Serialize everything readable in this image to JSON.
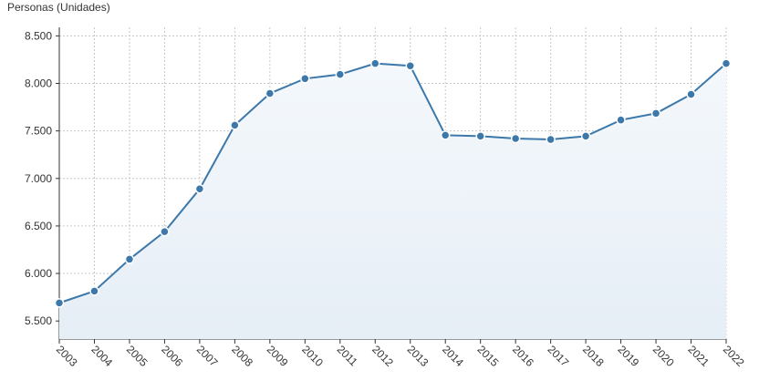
{
  "chart_data": {
    "type": "line",
    "y_axis_title": "Personas (Unidades)",
    "categories": [
      "2003",
      "2004",
      "2005",
      "2006",
      "2007",
      "2008",
      "2009",
      "2010",
      "2011",
      "2012",
      "2013",
      "2014",
      "2015",
      "2016",
      "2017",
      "2018",
      "2019",
      "2020",
      "2021",
      "2022"
    ],
    "series": [
      {
        "color": "#3d78aa",
        "values": [
          5690,
          5815,
          6150,
          6440,
          6890,
          7560,
          7895,
          8050,
          8095,
          8210,
          8185,
          7455,
          7445,
          7420,
          7410,
          7445,
          7615,
          7685,
          7885,
          8210
        ]
      }
    ],
    "ylim": [
      5310,
      8590
    ],
    "yticks": [
      {
        "value": 5500,
        "label": "5.500"
      },
      {
        "value": 6000,
        "label": "6.000"
      },
      {
        "value": 6500,
        "label": "6.500"
      },
      {
        "value": 7000,
        "label": "7.000"
      },
      {
        "value": 7500,
        "label": "7.500"
      },
      {
        "value": 8000,
        "label": "8.000"
      },
      {
        "value": 8500,
        "label": "8.500"
      }
    ],
    "grid": true
  }
}
